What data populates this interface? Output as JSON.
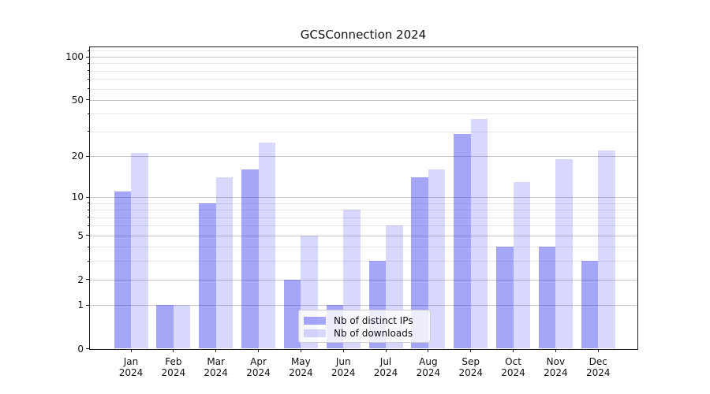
{
  "title": "GCSConnection 2024",
  "chart_data": {
    "type": "bar",
    "title": "GCSConnection 2024",
    "yscale": "log1p",
    "categories": [
      "Jan 2024",
      "Feb 2024",
      "Mar 2024",
      "Apr 2024",
      "May 2024",
      "Jun 2024",
      "Jul 2024",
      "Aug 2024",
      "Sep 2024",
      "Oct 2024",
      "Nov 2024",
      "Dec 2024"
    ],
    "series": [
      {
        "name": "Nb of distinct IPs",
        "color": "rgba(60,60,240,0.46)",
        "values": [
          11,
          1,
          9,
          16,
          2,
          1,
          3,
          14,
          29,
          4,
          4,
          3
        ]
      },
      {
        "name": "Nb of downloads",
        "color": "rgba(60,60,240,0.20)",
        "values": [
          21,
          1,
          14,
          25,
          5,
          8,
          6,
          16,
          37,
          13,
          19,
          22
        ]
      }
    ],
    "xlabel": "",
    "ylabel": "",
    "ylim": [
      0,
      120
    ],
    "y_major_ticks": [
      "0",
      "1",
      "2",
      "5",
      "10",
      "20",
      "50",
      "100"
    ],
    "y_major_tick_values": [
      0,
      1,
      2,
      5,
      10,
      20,
      50,
      100
    ],
    "y_minor_tick_values": [
      3,
      4,
      6,
      7,
      8,
      9,
      30,
      40,
      60,
      70,
      80,
      90,
      110
    ],
    "grid": true,
    "legend_position": "lower center",
    "colors": {
      "grid_major": "#c6c6c6",
      "grid_minor": "#e7e7e7",
      "spine": "#1a1a1a",
      "text": "#111111",
      "background": "#ffffff"
    }
  }
}
